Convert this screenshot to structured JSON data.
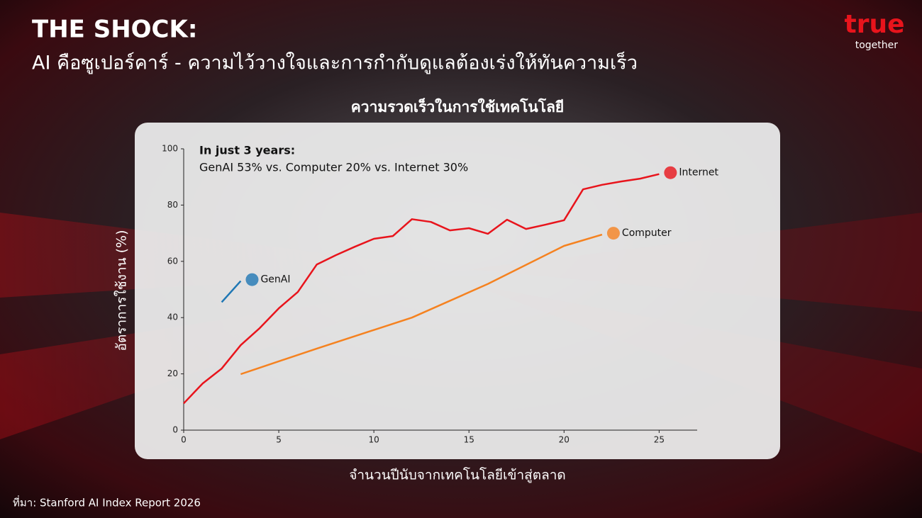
{
  "slide": {
    "heading": "THE SHOCK:",
    "subheading": "AI คือซูเปอร์คาร์ - ความไว้วางใจและการกำกับดูแลต้องเร่งให้ทันความเร็ว",
    "source": "ที่มา: Stanford AI Index Report 2026",
    "logo": {
      "brand": "true",
      "tagline": "together"
    }
  },
  "chart_data": {
    "type": "line",
    "title": "ความรวดเร็วในการใช้เทคโนโลยี",
    "xlabel": "จำนวนปีนับจากเทคโนโลยีเข้าสู่ตลาด",
    "ylabel": "อัตราการใช้งาน (%)",
    "annotation": {
      "heading": "In just 3 years:",
      "text": "GenAI 53% vs. Computer 20% vs. Internet 30%"
    },
    "xlim": [
      0,
      27
    ],
    "ylim": [
      0,
      100
    ],
    "xticks": [
      0,
      5,
      10,
      15,
      20,
      25
    ],
    "yticks": [
      0,
      20,
      40,
      60,
      80,
      100
    ],
    "grid": false,
    "series": [
      {
        "name": "Internet",
        "color": "#e8141c",
        "x": [
          0,
          1,
          2,
          3,
          4,
          5,
          6,
          7,
          8,
          9,
          10,
          11,
          12,
          13,
          14,
          15,
          16,
          17,
          18,
          19,
          20,
          21,
          22,
          23,
          24,
          25
        ],
        "values": [
          9.5,
          16.6,
          21.9,
          30.2,
          36.3,
          43.3,
          49.1,
          58.9,
          62.2,
          65.2,
          68,
          69,
          75,
          74,
          71,
          71.8,
          69.8,
          74.8,
          71.5,
          73,
          74.6,
          85.6,
          87.2,
          88.4,
          89.4,
          91
        ]
      },
      {
        "name": "Computer",
        "color": "#f58220",
        "x": [
          3,
          7,
          12,
          16,
          20,
          22
        ],
        "values": [
          19.9,
          29,
          40,
          52,
          65.5,
          69.5
        ]
      },
      {
        "name": "GenAI",
        "color": "#1f77b4",
        "x": [
          2,
          3
        ],
        "values": [
          45.5,
          53
        ]
      }
    ]
  }
}
